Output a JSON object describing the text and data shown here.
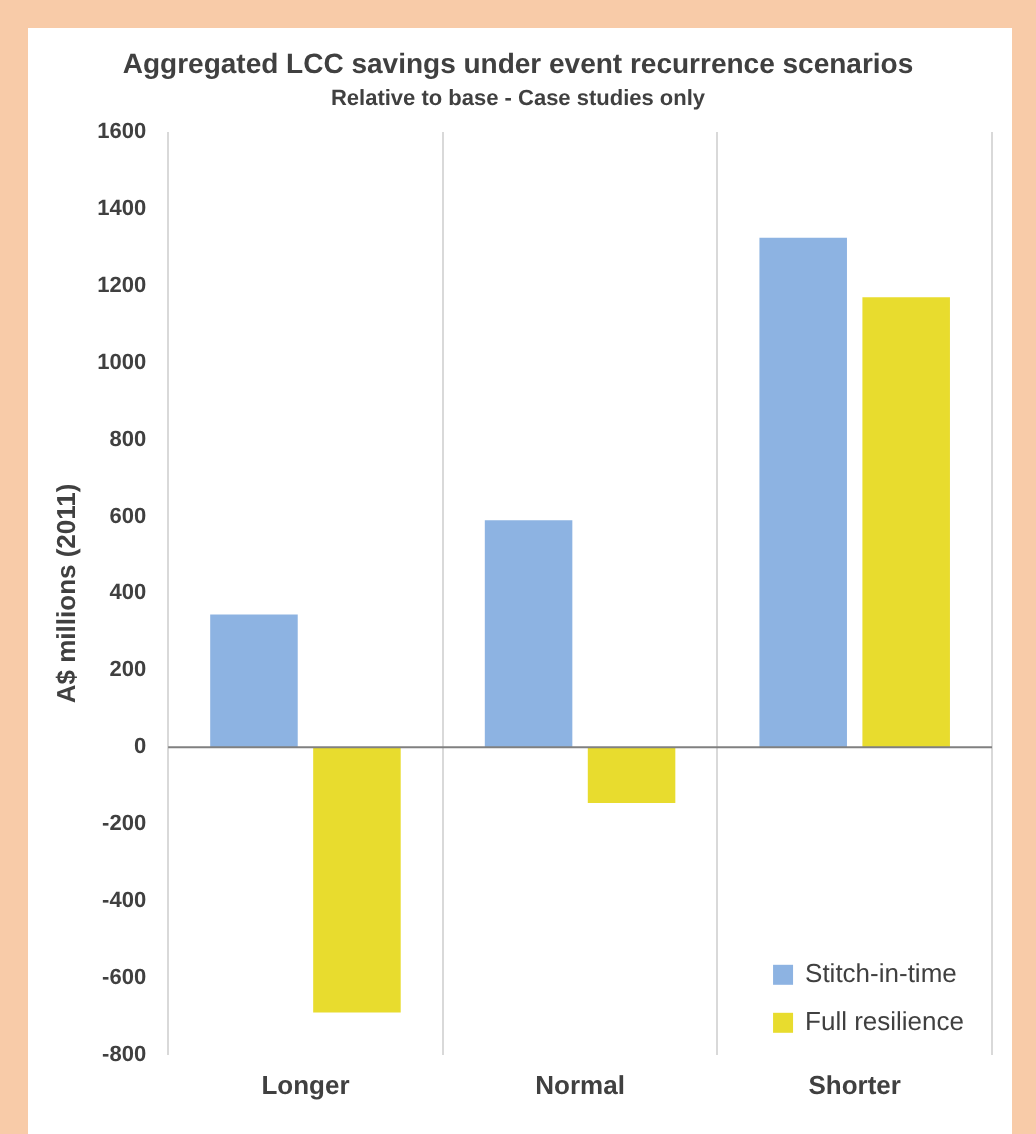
{
  "chart_data": {
    "type": "bar",
    "title": "Aggregated LCC savings under event recurrence scenarios",
    "subtitle": "Relative to base - Case studies only",
    "ylabel": "A$ millions (2011)",
    "categories": [
      "Longer",
      "Normal",
      "Shorter"
    ],
    "series": [
      {
        "name": "Stitch-in-time",
        "color": "#8db3e2",
        "values": [
          345,
          590,
          1325
        ]
      },
      {
        "name": "Full resilience",
        "color": "#e8dc2e",
        "values": [
          -690,
          -145,
          1170
        ]
      }
    ],
    "ylim": [
      -800,
      1600
    ],
    "yticks": [
      -800,
      -600,
      -400,
      -200,
      0,
      200,
      400,
      600,
      800,
      1000,
      1200,
      1400,
      1600
    ],
    "grid": "x",
    "legend": "bottom right"
  }
}
